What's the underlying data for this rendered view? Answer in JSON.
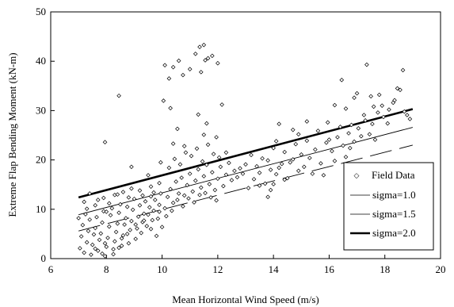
{
  "chart_data": {
    "type": "scatter",
    "title": "",
    "xlabel": "Mean Horizontal Wind Speed (m/s)",
    "ylabel": "Extreme Flap Bending Moment (kN-m)",
    "xlim": [
      6,
      20
    ],
    "ylim": [
      0,
      50
    ],
    "xticks": [
      6,
      8,
      10,
      12,
      14,
      16,
      18,
      20
    ],
    "yticks": [
      0,
      10,
      20,
      30,
      40,
      50
    ],
    "grid": false,
    "legend_position": "bottom-right",
    "legend": [
      {
        "label": "Field Data",
        "style": "marker"
      },
      {
        "label": "sigma=1.0",
        "style": "thin-line"
      },
      {
        "label": "sigma=1.5",
        "style": "dash-line"
      },
      {
        "label": "sigma=2.0",
        "style": "thick-line"
      }
    ],
    "series": [
      {
        "name": "Field Data",
        "kind": "scatter",
        "points": [
          [
            7.05,
            2.1
          ],
          [
            7.1,
            4.5
          ],
          [
            7.15,
            6.8
          ],
          [
            7.2,
            1.2
          ],
          [
            7.25,
            9.0
          ],
          [
            7.3,
            3.3
          ],
          [
            7.35,
            5.6
          ],
          [
            7.4,
            7.9
          ],
          [
            7.45,
            0.8
          ],
          [
            7.5,
            2.8
          ],
          [
            7.55,
            4.9
          ],
          [
            7.6,
            6.2
          ],
          [
            7.65,
            8.4
          ],
          [
            7.7,
            1.6
          ],
          [
            7.75,
            3.8
          ],
          [
            7.8,
            5.1
          ],
          [
            7.85,
            7.3
          ],
          [
            7.9,
            9.6
          ],
          [
            7.95,
            0.5
          ],
          [
            8.0,
            2.4
          ],
          [
            8.05,
            4.2
          ],
          [
            8.1,
            6.5
          ],
          [
            8.15,
            8.8
          ],
          [
            8.2,
            10.2
          ],
          [
            8.25,
            1.9
          ],
          [
            8.3,
            3.5
          ],
          [
            8.35,
            5.4
          ],
          [
            8.4,
            7.1
          ],
          [
            8.45,
            9.3
          ],
          [
            8.5,
            11.0
          ],
          [
            8.55,
            2.6
          ],
          [
            8.6,
            4.7
          ],
          [
            8.65,
            6.9
          ],
          [
            8.7,
            8.2
          ],
          [
            8.75,
            10.5
          ],
          [
            8.8,
            3.1
          ],
          [
            8.85,
            5.8
          ],
          [
            8.9,
            7.6
          ],
          [
            8.95,
            9.9
          ],
          [
            9.0,
            12.1
          ],
          [
            9.05,
            4.0
          ],
          [
            9.1,
            6.1
          ],
          [
            9.15,
            8.5
          ],
          [
            9.2,
            10.8
          ],
          [
            9.25,
            5.2
          ],
          [
            9.3,
            7.4
          ],
          [
            9.35,
            9.1
          ],
          [
            9.4,
            11.6
          ],
          [
            9.45,
            6.6
          ],
          [
            9.5,
            8.9
          ],
          [
            9.55,
            10.4
          ],
          [
            9.6,
            12.6
          ],
          [
            9.65,
            7.8
          ],
          [
            9.7,
            9.7
          ],
          [
            9.75,
            11.9
          ],
          [
            9.8,
            4.6
          ],
          [
            9.85,
            8.1
          ],
          [
            9.9,
            10.9
          ],
          [
            9.95,
            13.2
          ],
          [
            10.0,
            6.4
          ],
          [
            7.2,
            11.5
          ],
          [
            7.6,
            10.8
          ],
          [
            7.9,
            12.3
          ],
          [
            8.3,
            12.9
          ],
          [
            8.6,
            13.5
          ],
          [
            8.9,
            14.2
          ],
          [
            9.2,
            13.8
          ],
          [
            9.6,
            14.6
          ],
          [
            9.9,
            15.3
          ],
          [
            7.4,
            13.2
          ],
          [
            7.0,
            8.2
          ],
          [
            7.3,
            10.1
          ],
          [
            7.7,
            11.9
          ],
          [
            8.1,
            11.2
          ],
          [
            8.4,
            13.0
          ],
          [
            8.8,
            12.4
          ],
          [
            9.3,
            12.8
          ],
          [
            9.7,
            13.4
          ],
          [
            8.0,
            9.5
          ],
          [
            7.85,
            1.0
          ],
          [
            8.45,
            2.2
          ],
          [
            8.25,
            0.9
          ],
          [
            7.6,
            2.0
          ],
          [
            7.95,
            3.1
          ],
          [
            8.55,
            4.1
          ],
          [
            8.75,
            5.0
          ],
          [
            9.05,
            6.9
          ],
          [
            9.35,
            7.7
          ],
          [
            9.6,
            6.0
          ],
          [
            9.9,
            9.5
          ],
          [
            10.1,
            10.2
          ],
          [
            10.2,
            12.5
          ],
          [
            10.3,
            14.1
          ],
          [
            10.4,
            11.3
          ],
          [
            10.5,
            15.6
          ],
          [
            10.6,
            13.2
          ],
          [
            10.7,
            16.4
          ],
          [
            10.8,
            12.8
          ],
          [
            10.9,
            14.9
          ],
          [
            11.0,
            17.2
          ],
          [
            11.1,
            13.6
          ],
          [
            11.2,
            15.8
          ],
          [
            11.3,
            18.1
          ],
          [
            11.4,
            14.4
          ],
          [
            11.5,
            16.7
          ],
          [
            11.6,
            19.0
          ],
          [
            11.7,
            15.1
          ],
          [
            11.8,
            17.5
          ],
          [
            11.9,
            13.9
          ],
          [
            12.0,
            16.2
          ],
          [
            12.1,
            18.6
          ],
          [
            12.2,
            14.7
          ],
          [
            12.3,
            17.0
          ],
          [
            12.4,
            19.4
          ],
          [
            12.5,
            15.9
          ],
          [
            12.6,
            17.8
          ],
          [
            12.7,
            16.5
          ],
          [
            12.8,
            18.3
          ],
          [
            12.9,
            17.2
          ],
          [
            13.0,
            19.1
          ],
          [
            10.15,
            8.6
          ],
          [
            10.35,
            9.7
          ],
          [
            10.55,
            11.9
          ],
          [
            10.75,
            10.6
          ],
          [
            10.95,
            12.2
          ],
          [
            11.15,
            11.4
          ],
          [
            11.35,
            12.9
          ],
          [
            11.55,
            13.3
          ],
          [
            11.75,
            12.4
          ],
          [
            11.95,
            11.8
          ],
          [
            10.25,
            18.4
          ],
          [
            10.45,
            20.2
          ],
          [
            10.65,
            19.1
          ],
          [
            10.85,
            21.5
          ],
          [
            11.05,
            20.8
          ],
          [
            11.25,
            22.3
          ],
          [
            11.45,
            19.7
          ],
          [
            11.65,
            23.1
          ],
          [
            11.85,
            21.2
          ],
          [
            12.05,
            20.5
          ],
          [
            10.1,
            39.2
          ],
          [
            10.25,
            36.5
          ],
          [
            10.4,
            38.8
          ],
          [
            10.6,
            40.1
          ],
          [
            10.75,
            37.2
          ],
          [
            11.0,
            38.4
          ],
          [
            11.2,
            41.5
          ],
          [
            11.35,
            42.9
          ],
          [
            11.5,
            43.3
          ],
          [
            11.65,
            40.6
          ],
          [
            11.8,
            41.1
          ],
          [
            12.0,
            39.6
          ],
          [
            11.4,
            37.8
          ],
          [
            11.55,
            40.2
          ],
          [
            10.05,
            32.0
          ],
          [
            10.3,
            30.5
          ],
          [
            10.55,
            26.3
          ],
          [
            11.3,
            29.2
          ],
          [
            11.6,
            27.4
          ],
          [
            12.15,
            31.2
          ],
          [
            8.45,
            33.0
          ],
          [
            7.95,
            23.6
          ],
          [
            10.4,
            23.3
          ],
          [
            10.8,
            22.8
          ],
          [
            11.5,
            25.1
          ],
          [
            11.95,
            24.6
          ],
          [
            12.3,
            21.5
          ],
          [
            8.9,
            18.6
          ],
          [
            9.5,
            16.9
          ],
          [
            9.95,
            19.5
          ],
          [
            13.1,
            14.3
          ],
          [
            13.3,
            16.1
          ],
          [
            13.5,
            17.4
          ],
          [
            13.7,
            15.2
          ],
          [
            13.9,
            18.0
          ],
          [
            14.1,
            17.1
          ],
          [
            14.3,
            19.2
          ],
          [
            14.5,
            16.3
          ],
          [
            14.7,
            20.1
          ],
          [
            14.9,
            17.8
          ],
          [
            13.2,
            21.0
          ],
          [
            13.6,
            20.3
          ],
          [
            14.0,
            22.4
          ],
          [
            14.4,
            21.6
          ],
          [
            14.8,
            23.2
          ],
          [
            13.4,
            18.7
          ],
          [
            13.8,
            19.9
          ],
          [
            14.2,
            18.4
          ],
          [
            14.6,
            19.5
          ],
          [
            15.0,
            21.1
          ],
          [
            14.2,
            27.3
          ],
          [
            14.7,
            26.1
          ],
          [
            15.2,
            27.8
          ],
          [
            14.1,
            23.8
          ],
          [
            14.9,
            25.2
          ],
          [
            13.9,
            13.9
          ],
          [
            14.0,
            15.1
          ],
          [
            13.5,
            14.8
          ],
          [
            13.8,
            12.5
          ],
          [
            14.4,
            16.0
          ],
          [
            15.1,
            18.6
          ],
          [
            15.3,
            20.4
          ],
          [
            15.5,
            22.1
          ],
          [
            15.7,
            19.3
          ],
          [
            15.9,
            23.5
          ],
          [
            16.1,
            21.8
          ],
          [
            16.3,
            24.6
          ],
          [
            16.5,
            22.9
          ],
          [
            16.7,
            25.4
          ],
          [
            16.9,
            23.7
          ],
          [
            15.4,
            17.2
          ],
          [
            15.8,
            16.9
          ],
          [
            16.2,
            19.8
          ],
          [
            16.6,
            20.6
          ],
          [
            15.6,
            25.9
          ],
          [
            16.0,
            24.1
          ],
          [
            16.4,
            26.7
          ],
          [
            16.8,
            27.1
          ],
          [
            15.2,
            23.9
          ],
          [
            15.95,
            27.6
          ],
          [
            16.2,
            31.1
          ],
          [
            16.45,
            36.2
          ],
          [
            16.6,
            30.4
          ],
          [
            16.9,
            32.6
          ],
          [
            17.0,
            33.5
          ],
          [
            17.25,
            29.1
          ],
          [
            17.35,
            39.3
          ],
          [
            17.5,
            32.9
          ],
          [
            17.6,
            30.8
          ],
          [
            17.8,
            33.2
          ],
          [
            17.05,
            26.4
          ],
          [
            17.3,
            28.0
          ],
          [
            17.55,
            27.3
          ],
          [
            17.75,
            29.6
          ],
          [
            17.95,
            28.7
          ],
          [
            18.15,
            30.2
          ],
          [
            18.3,
            31.6
          ],
          [
            18.45,
            34.5
          ],
          [
            18.55,
            34.2
          ],
          [
            18.65,
            38.2
          ],
          [
            18.8,
            29.1
          ],
          [
            18.1,
            27.4
          ],
          [
            17.45,
            25.2
          ],
          [
            17.9,
            31.0
          ],
          [
            18.35,
            32.1
          ],
          [
            18.7,
            29.8
          ],
          [
            18.9,
            28.3
          ],
          [
            17.15,
            24.8
          ],
          [
            16.75,
            22.4
          ],
          [
            17.65,
            24.1
          ]
        ]
      },
      {
        "name": "sigma=1.0",
        "kind": "line",
        "x": [
          7,
          19
        ],
        "y": [
          8.9,
          26.6
        ]
      },
      {
        "name": "sigma=1.5",
        "kind": "line",
        "x": [
          7,
          19
        ],
        "y": [
          5.6,
          23.0
        ]
      },
      {
        "name": "sigma=2.0",
        "kind": "line",
        "x": [
          7,
          19
        ],
        "y": [
          12.4,
          30.3
        ]
      }
    ]
  }
}
